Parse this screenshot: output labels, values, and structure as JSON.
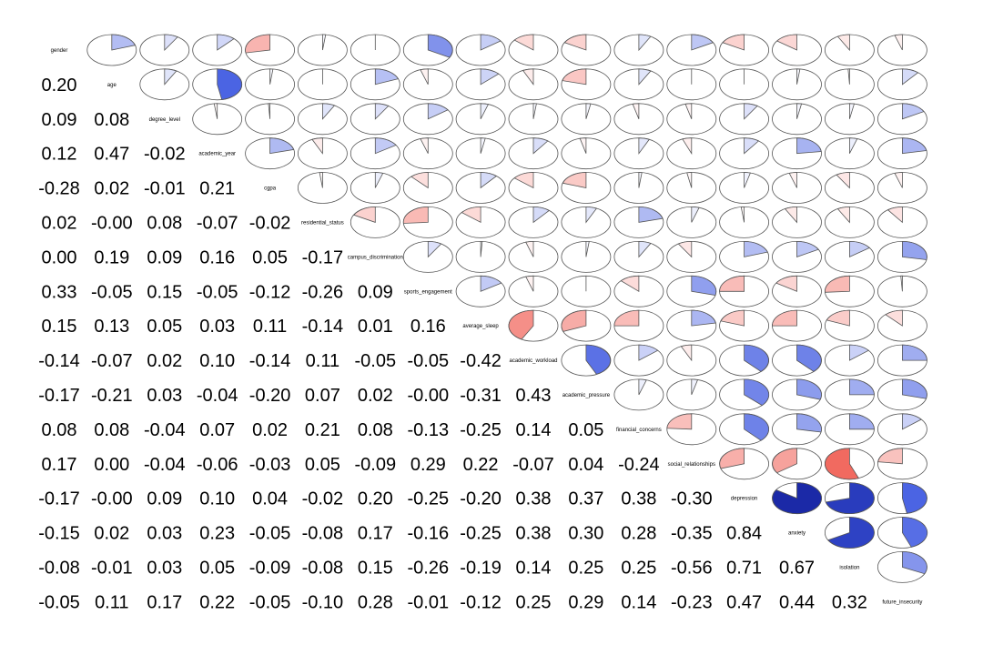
{
  "chart_data": {
    "type": "heatmap",
    "style": "correlogram: lower triangle numbers, upper triangle pie glyphs (fill fraction = |r|, blue positive, red negative)",
    "colors": {
      "positive": "#2b3fd6",
      "negative": "#e8312a",
      "outline": "#555555"
    },
    "variables": [
      "gender",
      "age",
      "degree_level",
      "academic_year",
      "cgpa",
      "residential_status",
      "campus_discrimination",
      "sports_engagement",
      "average_sleep",
      "academic_workload",
      "academic_pressure",
      "financial_concerns",
      "social_relationships",
      "depression",
      "anxiety",
      "isolation",
      "future_insecurity"
    ],
    "labels_lower": [
      [],
      [
        "0.20"
      ],
      [
        "0.09",
        "0.08"
      ],
      [
        "0.12",
        "0.47",
        "-0.02"
      ],
      [
        "-0.28",
        "0.02",
        "-0.01",
        "0.21"
      ],
      [
        "0.02",
        "-0.00",
        "0.08",
        "-0.07",
        "-0.02"
      ],
      [
        "0.00",
        "0.19",
        "0.09",
        "0.16",
        "0.05",
        "-0.17"
      ],
      [
        "0.33",
        "-0.05",
        "0.15",
        "-0.05",
        "-0.12",
        "-0.26",
        "0.09"
      ],
      [
        "0.15",
        "0.13",
        "0.05",
        "0.03",
        "0.11",
        "-0.14",
        "0.01",
        "0.16"
      ],
      [
        "-0.14",
        "-0.07",
        "0.02",
        "0.10",
        "-0.14",
        "0.11",
        "-0.05",
        "-0.05",
        "-0.42"
      ],
      [
        "-0.17",
        "-0.21",
        "0.03",
        "-0.04",
        "-0.20",
        "0.07",
        "0.02",
        "-0.00",
        "-0.31",
        "0.43"
      ],
      [
        "0.08",
        "0.08",
        "-0.04",
        "0.07",
        "0.02",
        "0.21",
        "0.08",
        "-0.13",
        "-0.25",
        "0.14",
        "0.05"
      ],
      [
        "0.17",
        "0.00",
        "-0.04",
        "-0.06",
        "-0.03",
        "0.05",
        "-0.09",
        "0.29",
        "0.22",
        "-0.07",
        "0.04",
        "-0.24"
      ],
      [
        "-0.17",
        "-0.00",
        "0.09",
        "0.10",
        "0.04",
        "-0.02",
        "0.20",
        "-0.25",
        "-0.20",
        "0.38",
        "0.37",
        "0.38",
        "-0.30"
      ],
      [
        "-0.15",
        "0.02",
        "0.03",
        "0.23",
        "-0.05",
        "-0.08",
        "0.17",
        "-0.16",
        "-0.25",
        "0.38",
        "0.30",
        "0.28",
        "-0.35",
        "0.84"
      ],
      [
        "-0.08",
        "-0.01",
        "0.03",
        "0.05",
        "-0.09",
        "-0.08",
        "0.15",
        "-0.26",
        "-0.19",
        "0.14",
        "0.25",
        "0.25",
        "-0.56",
        "0.71",
        "0.67"
      ],
      [
        "-0.05",
        "0.11",
        "0.17",
        "0.22",
        "-0.05",
        "-0.10",
        "0.28",
        "-0.01",
        "-0.12",
        "0.25",
        "0.29",
        "0.14",
        "-0.23",
        "0.47",
        "0.44",
        "0.32"
      ]
    ]
  }
}
